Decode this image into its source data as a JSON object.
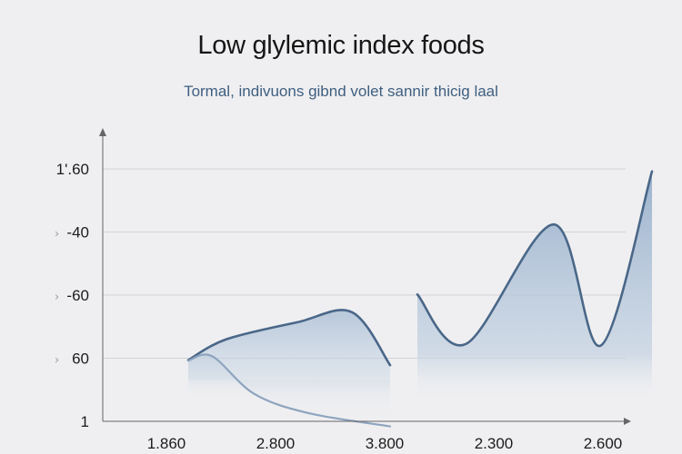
{
  "chart_data": {
    "type": "area",
    "title": "Low glylemic index foods",
    "subtitle": "Tormal, indivuons gibnd volet sannir thicig laal",
    "xlabel": "",
    "ylabel": "",
    "grid": true,
    "x_ticks": [
      "1.860",
      "2.800",
      "3.800",
      "2.300",
      "2.600"
    ],
    "y_ticks": [
      "1",
      "60",
      "-60",
      "-40",
      "1'.60"
    ],
    "y_ticks_markers": [
      "",
      "›",
      "›",
      "›",
      ""
    ],
    "series": [
      {
        "color": "#4a6788",
        "fill": "#adc0d6",
        "points": [
          [
            0.2,
            0.97
          ],
          [
            0.55,
            1.3
          ],
          [
            1.2,
            1.57
          ],
          [
            1.7,
            1.73
          ],
          [
            2.05,
            0.89
          ]
        ]
      },
      {
        "color": "#8ea4bf",
        "fill": "#c4d1e0",
        "points": [
          [
            0.2,
            0.96
          ],
          [
            0.42,
            1.03
          ],
          [
            0.8,
            0.44
          ],
          [
            1.3,
            0.13
          ],
          [
            2.05,
            -0.08
          ]
        ]
      },
      {
        "color": "#4a6788",
        "fill": "#9fb6d0",
        "points": [
          [
            2.3,
            2.01
          ],
          [
            2.75,
            1.23
          ],
          [
            3.55,
            3.12
          ],
          [
            3.98,
            1.2
          ],
          [
            4.45,
            3.96
          ]
        ]
      }
    ]
  }
}
